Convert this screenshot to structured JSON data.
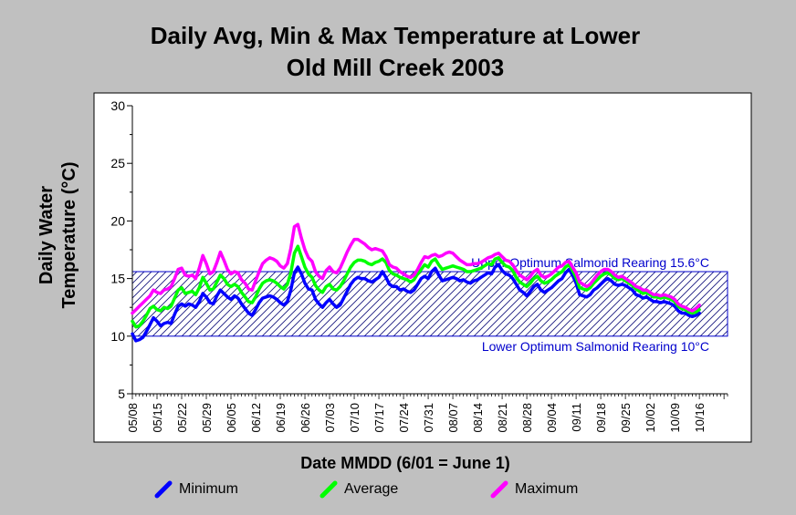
{
  "chart_data": {
    "type": "line",
    "title_line1": "Daily Avg, Min & Max Temperature at Lower",
    "title_line2": "Old Mill Creek 2003",
    "xlabel": "Date MMDD (6/01 = June 1)",
    "ylabel_line1": "Daily Water",
    "ylabel_line2": "Temperature (°C)",
    "ylim": [
      5,
      30
    ],
    "yticks": [
      "5",
      "10",
      "15",
      "20",
      "25",
      "30"
    ],
    "xticks": [
      "05/08",
      "05/15",
      "05/22",
      "05/29",
      "06/05",
      "06/12",
      "06/19",
      "06/26",
      "07/03",
      "07/10",
      "07/17",
      "07/24",
      "07/31",
      "08/07",
      "08/14",
      "08/21",
      "08/28",
      "09/04",
      "09/11",
      "09/18",
      "09/25",
      "10/02",
      "10/09",
      "10/16"
    ],
    "x_start": "05/08",
    "x_end": "10/24",
    "optimum_band": {
      "upper": 15.6,
      "lower": 10,
      "upper_label": "Upper Optimum Salmonid Rearing 15.6°C",
      "lower_label": "Lower Optimum Salmonid Rearing 10°C"
    },
    "series": [
      {
        "name": "Minimum",
        "color": "#0000ff",
        "values": [
          10.2,
          9.6,
          9.7,
          9.9,
          10.4,
          11.0,
          11.6,
          11.3,
          10.9,
          11.1,
          11.2,
          11.1,
          11.9,
          12.6,
          12.8,
          12.6,
          12.8,
          12.7,
          12.5,
          13.0,
          13.7,
          13.4,
          12.9,
          12.8,
          13.5,
          14.0,
          13.7,
          13.4,
          13.2,
          13.5,
          13.3,
          12.8,
          12.4,
          12.0,
          11.8,
          12.3,
          12.9,
          13.3,
          13.4,
          13.5,
          13.4,
          13.2,
          12.9,
          12.7,
          13.0,
          14.0,
          15.5,
          16.0,
          15.4,
          14.6,
          14.1,
          14.0,
          13.2,
          12.8,
          12.5,
          12.9,
          13.2,
          12.8,
          12.5,
          12.7,
          13.3,
          13.9,
          14.5,
          14.9,
          15.1,
          15.0,
          15.0,
          14.8,
          14.7,
          14.9,
          15.1,
          15.6,
          15.1,
          14.5,
          14.3,
          14.3,
          14.0,
          14.1,
          13.9,
          13.8,
          14.0,
          14.5,
          15.0,
          15.2,
          15.0,
          15.6,
          15.9,
          15.3,
          14.8,
          14.9,
          15.0,
          15.1,
          15.0,
          14.8,
          14.9,
          14.7,
          14.6,
          14.8,
          14.9,
          15.1,
          15.3,
          15.5,
          15.4,
          16.0,
          16.2,
          15.7,
          15.4,
          15.3,
          15.0,
          14.5,
          14.0,
          13.8,
          13.5,
          13.9,
          14.3,
          14.5,
          14.0,
          13.8,
          14.0,
          14.2,
          14.5,
          14.8,
          15.0,
          15.5,
          15.8,
          15.3,
          14.6,
          13.6,
          13.5,
          13.4,
          13.6,
          14.0,
          14.2,
          14.5,
          14.8,
          15.0,
          14.8,
          14.5,
          14.4,
          14.5,
          14.4,
          14.2,
          14.0,
          13.6,
          13.5,
          13.3,
          13.4,
          13.2,
          13.0,
          13.0,
          12.9,
          13.0,
          12.9,
          12.8,
          12.6,
          12.2,
          12.0,
          12.0,
          11.8,
          11.7,
          11.8,
          12.0
        ]
      },
      {
        "name": "Average",
        "color": "#00ff00",
        "values": [
          11.3,
          10.8,
          10.9,
          11.3,
          11.8,
          12.4,
          12.6,
          12.3,
          12.2,
          12.5,
          12.4,
          12.6,
          13.3,
          14.0,
          14.2,
          13.7,
          13.8,
          13.9,
          13.6,
          14.2,
          15.1,
          14.6,
          14.0,
          14.1,
          14.7,
          15.3,
          15.0,
          14.5,
          14.3,
          14.5,
          14.3,
          13.8,
          13.4,
          13.0,
          12.9,
          13.4,
          14.1,
          14.6,
          14.8,
          14.9,
          14.8,
          14.6,
          14.3,
          14.1,
          14.5,
          15.5,
          17.2,
          17.8,
          16.9,
          16.0,
          15.4,
          15.1,
          14.4,
          14.0,
          13.8,
          14.3,
          14.5,
          14.1,
          14.0,
          14.3,
          14.8,
          15.4,
          16.0,
          16.4,
          16.6,
          16.6,
          16.5,
          16.3,
          16.2,
          16.4,
          16.5,
          16.7,
          16.4,
          15.7,
          15.4,
          15.3,
          15.1,
          15.0,
          14.9,
          14.7,
          14.9,
          15.4,
          15.8,
          16.2,
          16.0,
          16.5,
          16.7,
          16.2,
          15.8,
          15.9,
          16.0,
          16.1,
          16.0,
          15.9,
          15.8,
          15.6,
          15.6,
          15.7,
          15.8,
          15.9,
          16.1,
          16.3,
          16.2,
          16.7,
          16.8,
          16.4,
          16.1,
          16.0,
          15.7,
          15.1,
          14.7,
          14.5,
          14.3,
          14.6,
          15.0,
          15.2,
          14.8,
          14.6,
          14.7,
          14.9,
          15.2,
          15.4,
          15.6,
          16.0,
          16.2,
          15.7,
          15.1,
          14.2,
          14.1,
          14.0,
          14.2,
          14.6,
          14.9,
          15.2,
          15.4,
          15.5,
          15.3,
          15.0,
          14.9,
          15.0,
          14.8,
          14.6,
          14.4,
          14.1,
          13.9,
          13.7,
          13.8,
          13.6,
          13.4,
          13.4,
          13.3,
          13.4,
          13.3,
          13.2,
          13.0,
          12.6,
          12.4,
          12.3,
          12.1,
          12.0,
          12.1,
          12.3
        ]
      },
      {
        "name": "Maximum",
        "color": "#ff00ff",
        "values": [
          12.0,
          12.3,
          12.6,
          12.9,
          13.2,
          13.5,
          14.0,
          13.8,
          13.7,
          14.0,
          14.1,
          14.3,
          15.0,
          15.8,
          15.9,
          15.3,
          15.2,
          15.3,
          15.0,
          15.9,
          17.0,
          16.3,
          15.4,
          15.6,
          16.4,
          17.3,
          16.6,
          15.8,
          15.4,
          15.6,
          15.5,
          14.9,
          14.6,
          14.1,
          14.0,
          14.8,
          15.6,
          16.3,
          16.6,
          16.8,
          16.7,
          16.5,
          16.1,
          15.9,
          16.3,
          17.6,
          19.5,
          19.7,
          18.5,
          17.5,
          16.8,
          16.5,
          15.6,
          15.2,
          15.0,
          15.7,
          16.0,
          15.6,
          15.5,
          15.9,
          16.6,
          17.3,
          17.9,
          18.4,
          18.4,
          18.2,
          18.0,
          17.7,
          17.5,
          17.6,
          17.5,
          17.4,
          16.9,
          16.2,
          16.0,
          15.9,
          15.6,
          15.4,
          15.2,
          15.1,
          15.3,
          15.8,
          16.4,
          16.9,
          16.8,
          17.0,
          17.1,
          16.9,
          17.0,
          17.2,
          17.3,
          17.2,
          16.9,
          16.6,
          16.4,
          16.2,
          16.2,
          16.3,
          16.3,
          16.4,
          16.6,
          16.8,
          16.9,
          17.1,
          17.2,
          16.9,
          16.6,
          16.5,
          16.2,
          15.7,
          15.3,
          15.1,
          14.9,
          15.2,
          15.6,
          15.8,
          15.3,
          15.1,
          15.2,
          15.4,
          15.7,
          16.0,
          16.1,
          16.4,
          16.5,
          16.0,
          15.5,
          14.7,
          14.5,
          14.3,
          14.5,
          14.9,
          15.3,
          15.6,
          15.8,
          15.8,
          15.6,
          15.3,
          15.1,
          15.2,
          15.0,
          14.8,
          14.6,
          14.3,
          14.2,
          14.0,
          14.0,
          13.8,
          13.6,
          13.6,
          13.5,
          13.6,
          13.5,
          13.4,
          13.2,
          12.8,
          12.6,
          12.5,
          12.3,
          12.2,
          12.4,
          12.7
        ]
      }
    ],
    "legend_placement": "bottom",
    "grid": false
  }
}
